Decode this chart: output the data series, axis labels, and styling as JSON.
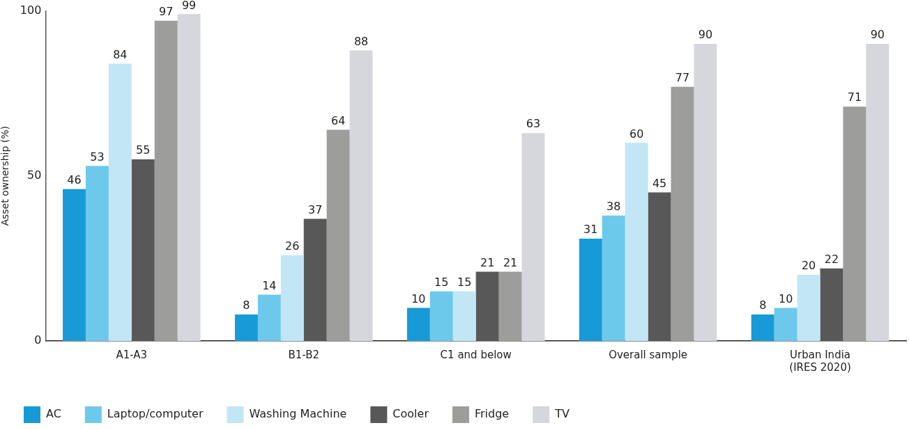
{
  "chart_data": {
    "type": "bar",
    "ylabel": "Asset ownership (%)",
    "categories": [
      "A1-A3",
      "B1-B2",
      "C1 and below",
      "Overall sample",
      "Urban India (IRES 2020)"
    ],
    "series": [
      {
        "name": "AC",
        "color": "#189ad6",
        "values": [
          46,
          8,
          10,
          31,
          8
        ]
      },
      {
        "name": "Laptop/computer",
        "color": "#6dc9ec",
        "values": [
          53,
          14,
          15,
          38,
          10
        ]
      },
      {
        "name": "Washing Machine",
        "color": "#c2e6f5",
        "values": [
          84,
          26,
          15,
          60,
          20
        ]
      },
      {
        "name": "Cooler",
        "color": "#585858",
        "values": [
          55,
          37,
          21,
          45,
          22
        ]
      },
      {
        "name": "Fridge",
        "color": "#9d9d9c",
        "values": [
          97,
          64,
          21,
          77,
          71
        ]
      },
      {
        "name": "TV",
        "color": "#d6d7dc",
        "values": [
          99,
          88,
          63,
          90,
          90
        ]
      }
    ],
    "ylim": [
      0,
      100
    ],
    "yticks": [
      0,
      50,
      100
    ],
    "grid": false,
    "legend": "bottom left",
    "data_labels": true
  }
}
